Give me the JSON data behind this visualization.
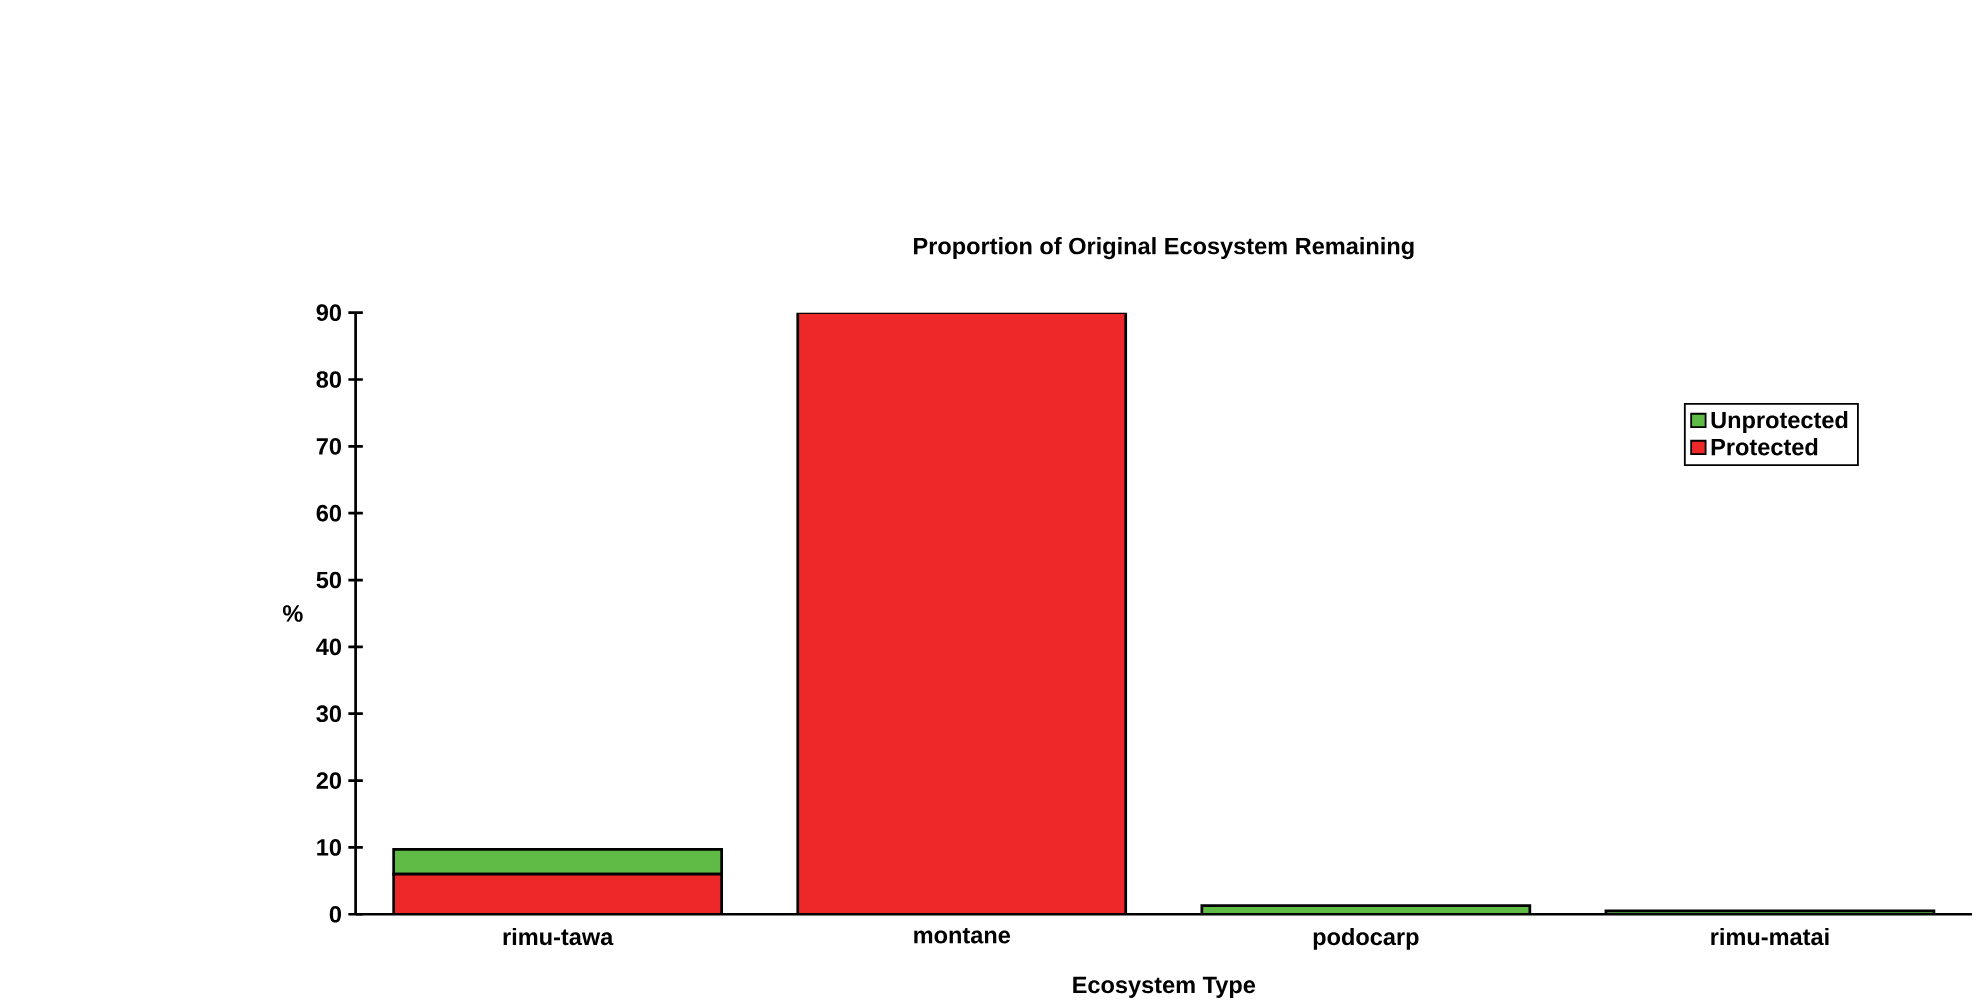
{
  "chart_data": {
    "type": "bar",
    "title": "Proportion of Original Ecosystem Remaining",
    "xlabel": "Ecosystem Type",
    "ylabel": "%",
    "categories": [
      "rimu-tawa",
      "montane",
      "podocarp",
      "rimu-matai"
    ],
    "stacked": true,
    "series": [
      {
        "name": "Protected",
        "color": "#ee2828",
        "values": [
          6,
          90,
          0,
          0
        ]
      },
      {
        "name": "Unprotected",
        "color": "#5fba46",
        "values": [
          3.7,
          0,
          1.3,
          0.5
        ]
      }
    ],
    "ylim": [
      0,
      90
    ],
    "yticks": [
      0,
      10,
      20,
      30,
      40,
      50,
      60,
      70,
      80,
      90
    ],
    "legend": "top right",
    "grid": false
  }
}
